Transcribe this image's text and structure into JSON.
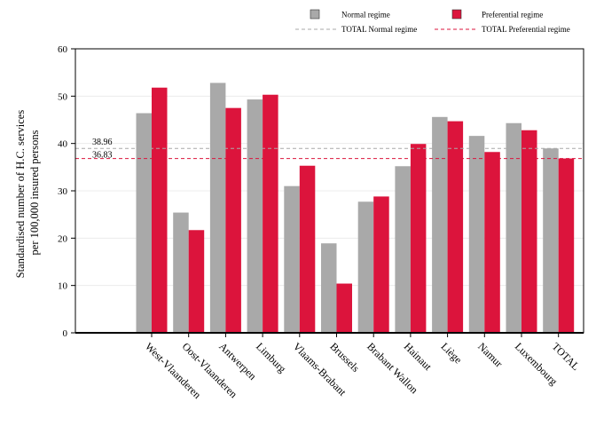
{
  "chart_data": {
    "type": "bar",
    "ylabel": "Standardised number of H.C. services per 100,000 insured persons",
    "ylabel_lines": [
      "Standardised number of H.C. services",
      "per 100,000 insured persons"
    ],
    "ylim": [
      0,
      60
    ],
    "yticks": [
      0,
      10,
      20,
      30,
      40,
      50,
      60
    ],
    "grid": true,
    "legend_position": "top",
    "categories": [
      "West-Vlaanderen",
      "Oost-Vlaanderen",
      "Antwerpen",
      "Limburg",
      "Vlaams-Brabant",
      "Brussels",
      "Brabant Wallon",
      "Hainaut",
      "Liège",
      "Namur",
      "Luxembourg",
      "TOTAL"
    ],
    "series": [
      {
        "name": "Normal regime",
        "color": "#a9a9a9",
        "values": [
          46.4,
          25.4,
          52.8,
          49.3,
          31.0,
          18.9,
          27.7,
          35.2,
          45.6,
          41.6,
          44.3,
          38.96
        ]
      },
      {
        "name": "Preferential regime",
        "color": "#dc143c",
        "values": [
          51.8,
          21.7,
          47.5,
          50.3,
          35.3,
          10.4,
          28.8,
          39.9,
          44.7,
          38.2,
          42.8,
          36.83
        ]
      }
    ],
    "reference_lines": [
      {
        "name": "TOTAL Normal regime",
        "value": 38.96,
        "label": "38.96",
        "color": "#a9a9a9"
      },
      {
        "name": "TOTAL Preferential regime",
        "value": 36.83,
        "label": "36.83",
        "color": "#dc143c"
      }
    ]
  }
}
